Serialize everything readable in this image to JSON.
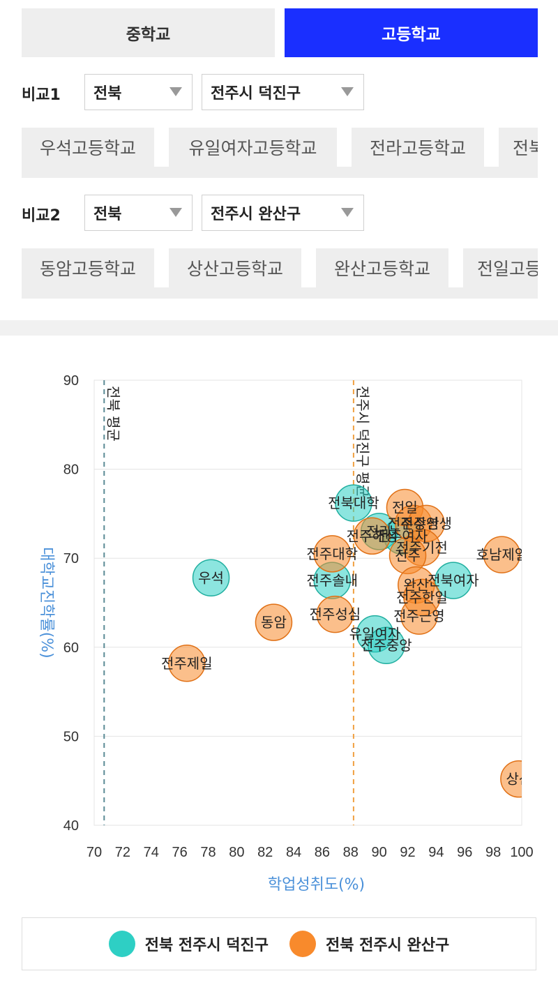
{
  "tabs": [
    {
      "label": "중학교"
    },
    {
      "label": "고등학교"
    }
  ],
  "compare1": {
    "label": "비교1",
    "region": "전북",
    "district": "전주시 덕진구",
    "schools": [
      "우석고등학교",
      "유일여자고등학교",
      "전라고등학교",
      "전북"
    ]
  },
  "compare2": {
    "label": "비교2",
    "region": "전북",
    "district": "전주시 완산구",
    "schools": [
      "동암고등학교",
      "상산고등학교",
      "완산고등학교",
      "전일고등"
    ]
  },
  "colors": {
    "teal": "#2ecfc4",
    "orange": "#f88a2c",
    "accent": "#1a2fff"
  },
  "chart_data": {
    "type": "scatter",
    "xlabel": "학업성취도(%)",
    "ylabel": "대학교진학률(%)",
    "xlim": [
      70,
      100
    ],
    "ylim": [
      40,
      90
    ],
    "x_ticks": [
      "70",
      "72",
      "74",
      "76",
      "78",
      "80",
      "82",
      "84",
      "86",
      "88",
      "90",
      "92",
      "94",
      "96",
      "98",
      "100"
    ],
    "y_ticks": [
      "40",
      "50",
      "60",
      "70",
      "80",
      "90"
    ],
    "grid": true,
    "reference_lines": [
      {
        "label": "전북 평균",
        "x": 70.7,
        "color": "#5a8a95"
      },
      {
        "label": "전주시 덕진구 평균",
        "x": 88.2,
        "color": "#f0a040"
      }
    ],
    "series": [
      {
        "name": "전북 전주시 덕진구",
        "color": "#2ecfc4",
        "points": [
          {
            "label": "우석",
            "x": 78.2,
            "y": 67.8
          },
          {
            "label": "전북대학",
            "x": 88.2,
            "y": 76.2
          },
          {
            "label": "전주솔내",
            "x": 86.7,
            "y": 67.5
          },
          {
            "label": "유일여자",
            "x": 89.7,
            "y": 61.5
          },
          {
            "label": "전주중앙",
            "x": 90.5,
            "y": 60.2
          },
          {
            "label": "전북여자",
            "x": 95.2,
            "y": 67.5
          },
          {
            "label": "전라",
            "x": 90.0,
            "y": 73.0
          },
          {
            "label": "전주여자",
            "x": 91.6,
            "y": 72.5
          }
        ]
      },
      {
        "name": "전북 전주시 완산구",
        "color": "#f88a2c",
        "points": [
          {
            "label": "전주제일",
            "x": 76.5,
            "y": 58.2
          },
          {
            "label": "동암",
            "x": 82.6,
            "y": 62.8
          },
          {
            "label": "전주성심",
            "x": 86.9,
            "y": 63.7
          },
          {
            "label": "전주대학",
            "x": 86.7,
            "y": 70.5
          },
          {
            "label": "전주해성",
            "x": 89.5,
            "y": 72.5
          },
          {
            "label": "전일",
            "x": 91.8,
            "y": 75.7
          },
          {
            "label": "전주상산",
            "x": 92.4,
            "y": 73.9
          },
          {
            "label": "전주영생",
            "x": 93.3,
            "y": 73.9
          },
          {
            "label": "전주기전",
            "x": 93.0,
            "y": 71.2
          },
          {
            "label": "전주",
            "x": 92.0,
            "y": 70.3
          },
          {
            "label": "완산",
            "x": 92.6,
            "y": 67.0
          },
          {
            "label": "전주한일",
            "x": 93.0,
            "y": 65.6
          },
          {
            "label": "전주근영",
            "x": 92.8,
            "y": 63.5
          },
          {
            "label": "호남제일",
            "x": 98.6,
            "y": 70.4
          },
          {
            "label": "상산",
            "x": 99.8,
            "y": 45.2
          }
        ]
      }
    ]
  }
}
